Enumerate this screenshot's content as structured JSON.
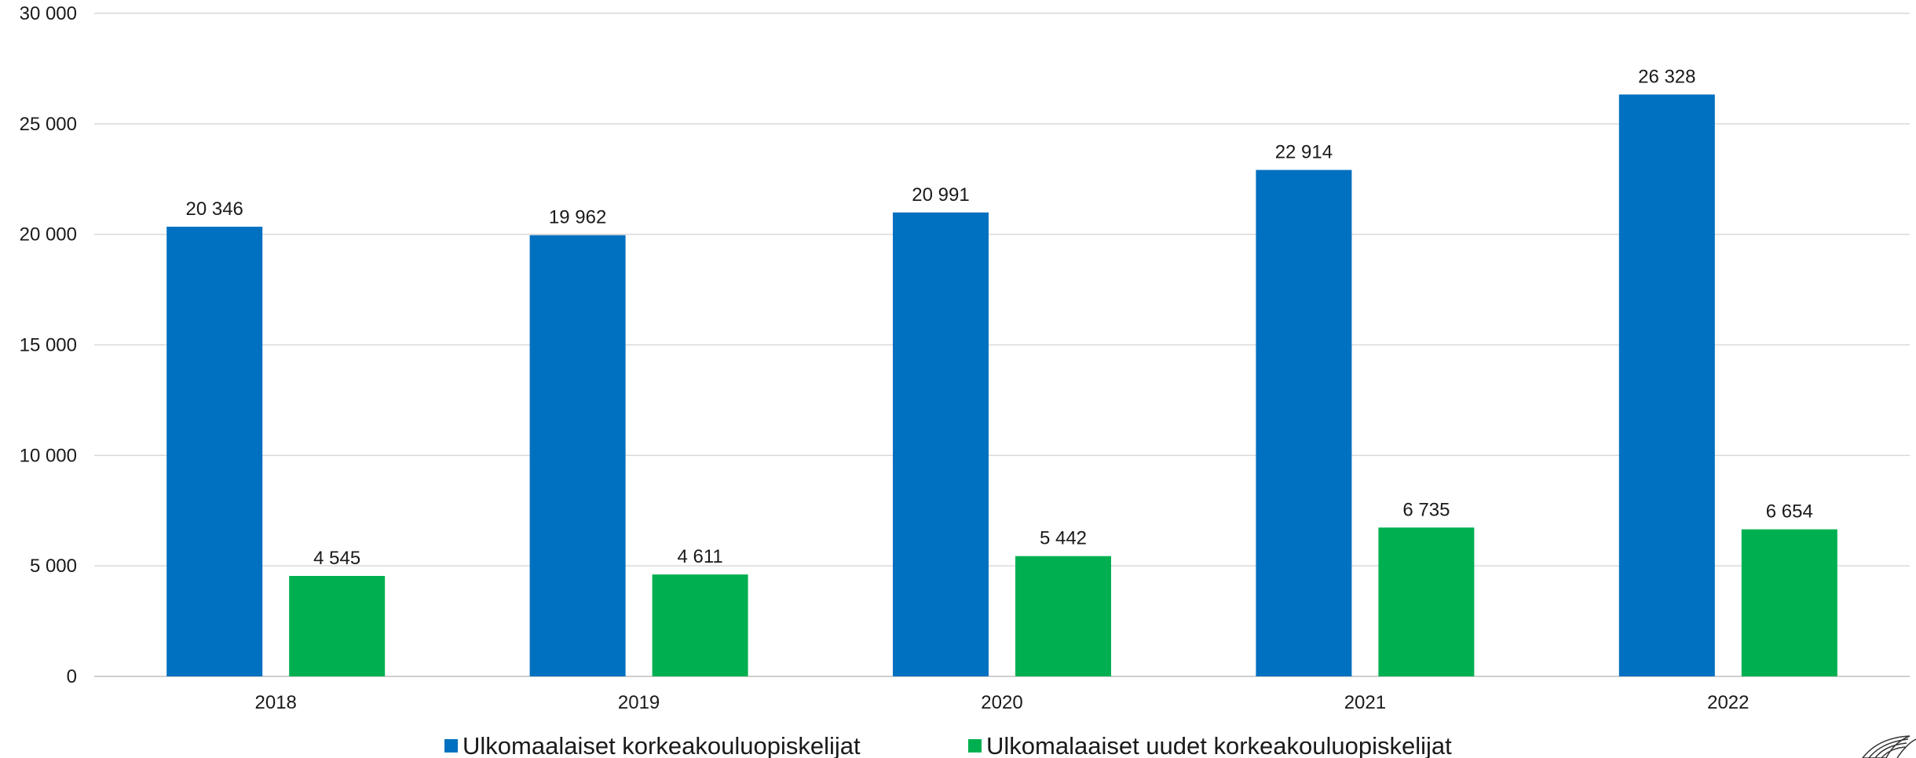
{
  "chart_data": {
    "type": "bar",
    "categories": [
      "2018",
      "2019",
      "2020",
      "2021",
      "2022"
    ],
    "series": [
      {
        "name": "Ulkomaalaiset korkeakouluopiskelijat",
        "color": "#0070C0",
        "values": [
          20346,
          19962,
          20991,
          22914,
          26328
        ],
        "labels": [
          "20 346",
          "19 962",
          "20 991",
          "22 914",
          "26 328"
        ]
      },
      {
        "name": "Ulkomalaaiset uudet korkeakouluopiskelijat",
        "color": "#00B050",
        "values": [
          4545,
          4611,
          5442,
          6735,
          6654
        ],
        "labels": [
          "4 545",
          "4 611",
          "5 442",
          "6 735",
          "6 654"
        ]
      }
    ],
    "ylim": [
      0,
      30000
    ],
    "yticks": [
      0,
      5000,
      10000,
      15000,
      20000,
      25000,
      30000
    ],
    "ytick_labels": [
      "0",
      "5 000",
      "10 000",
      "15 000",
      "20 000",
      "25 000",
      "30 000"
    ],
    "grid": true,
    "legend_position": "bottom"
  }
}
